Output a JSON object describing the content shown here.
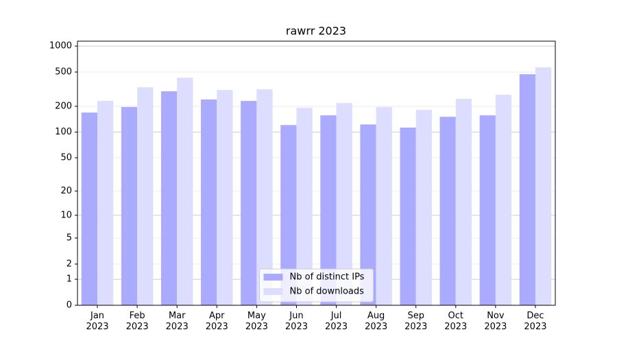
{
  "chart_data": {
    "type": "bar",
    "title": "rawrr 2023",
    "categories": [
      "Jan\n2023",
      "Feb\n2023",
      "Mar\n2023",
      "Apr\n2023",
      "May\n2023",
      "Jun\n2023",
      "Jul\n2023",
      "Aug\n2023",
      "Sep\n2023",
      "Oct\n2023",
      "Nov\n2023",
      "Dec\n2023"
    ],
    "series": [
      {
        "name": "Nb of distinct IPs",
        "color": "#aaaaff",
        "values": [
          169,
          196,
          299,
          240,
          231,
          121,
          157,
          123,
          113,
          151,
          157,
          472
        ]
      },
      {
        "name": "Nb of downloads",
        "color": "#ddddff",
        "values": [
          231,
          333,
          430,
          310,
          315,
          192,
          218,
          196,
          182,
          244,
          272,
          567
        ]
      }
    ],
    "yscale": "log1p",
    "ylim": [
      0,
      1140
    ],
    "yticks": [
      0,
      1,
      2,
      5,
      10,
      20,
      50,
      100,
      200,
      500,
      1000
    ],
    "grid": true,
    "legend": "lower center"
  }
}
